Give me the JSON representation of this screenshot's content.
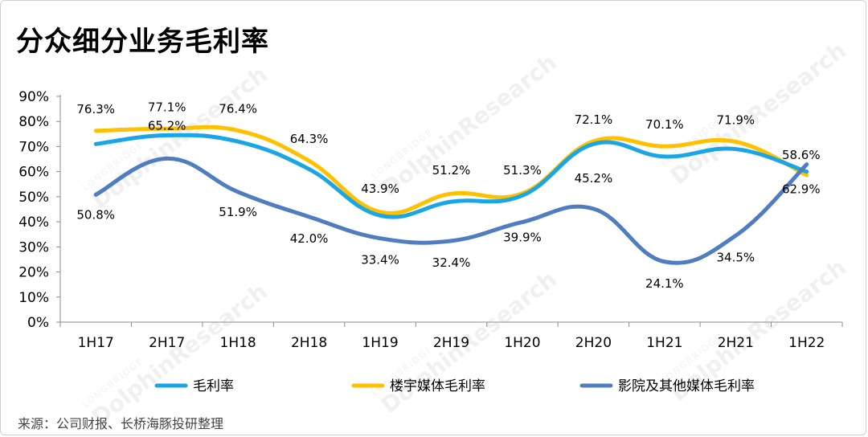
{
  "title": "分众细分业务毛利率",
  "source": "来源：公司财报、长桥海豚投研整理",
  "watermark": {
    "brand": "LONGBRIDGE",
    "name": "DolphinResearch"
  },
  "chart_data": {
    "type": "line",
    "title": "分众细分业务毛利率",
    "categories": [
      "1H17",
      "2H17",
      "1H18",
      "2H18",
      "1H19",
      "2H19",
      "1H20",
      "2H20",
      "1H21",
      "2H21",
      "1H22"
    ],
    "y_ticks": [
      "90%",
      "80%",
      "70%",
      "60%",
      "50%",
      "40%",
      "30%",
      "20%",
      "10%",
      "0%"
    ],
    "ylim": [
      0,
      90
    ],
    "legend_position": "bottom",
    "series": [
      {
        "name": "毛利率",
        "color": "#1aa6e6",
        "values": [
          71.0,
          74.5,
          72.0,
          61.0,
          42.5,
          48.0,
          50.5,
          71.0,
          66.0,
          69.0,
          60.0
        ],
        "labels": []
      },
      {
        "name": "楼宇媒体毛利率",
        "color": "#ffc000",
        "values": [
          76.3,
          77.1,
          76.4,
          64.3,
          43.9,
          51.2,
          51.3,
          72.1,
          70.1,
          71.9,
          58.6
        ],
        "labels": [
          "76.3%",
          "77.1%",
          "76.4%",
          "64.3%",
          "43.9%",
          "51.2%",
          "51.3%",
          "72.1%",
          "70.1%",
          "71.9%",
          "58.6%"
        ]
      },
      {
        "name": "影院及其他媒体毛利率",
        "color": "#4f7dbf",
        "values": [
          50.8,
          65.2,
          51.9,
          42.0,
          33.4,
          32.4,
          39.9,
          45.2,
          24.1,
          34.5,
          62.9
        ],
        "labels": [
          "50.8%",
          "65.2%",
          "51.9%",
          "42.0%",
          "33.4%",
          "32.4%",
          "39.9%",
          "45.2%",
          "24.1%",
          "34.5%",
          "62.9%"
        ]
      }
    ]
  }
}
